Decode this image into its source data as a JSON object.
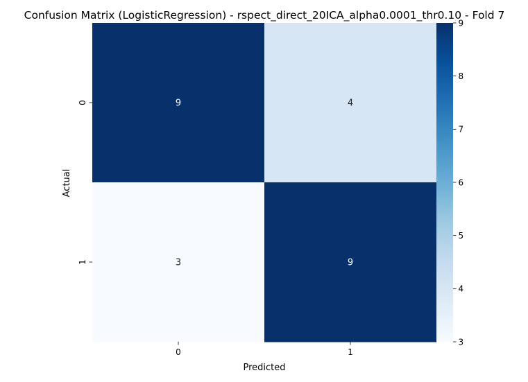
{
  "chart_data": {
    "type": "heatmap",
    "title": "Confusion Matrix (LogisticRegression) - rspect_direct_20ICA_alpha0.0001_thr0.10 - Fold 7",
    "xlabel": "Predicted",
    "ylabel": "Actual",
    "x_categories": [
      "0",
      "1"
    ],
    "y_categories": [
      "0",
      "1"
    ],
    "values": [
      [
        9,
        4
      ],
      [
        3,
        9
      ]
    ],
    "colormap": "Blues",
    "vmin": 3,
    "vmax": 9,
    "colorbar_ticks": [
      3,
      4,
      5,
      6,
      7,
      8,
      9
    ],
    "annotations": true,
    "grid": false,
    "colorbar_position": "right"
  }
}
